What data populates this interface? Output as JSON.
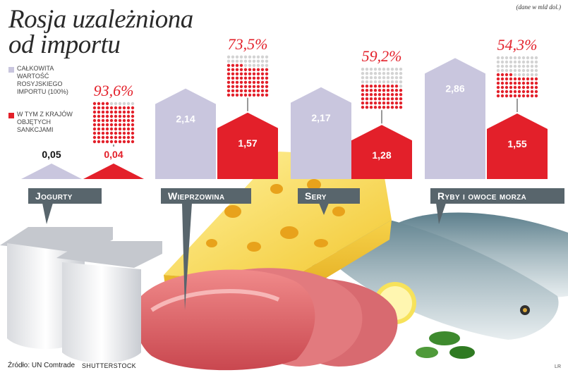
{
  "title_line1": "Rosja uzależniona",
  "title_line2": "od importu",
  "unit_note": "(dane w mld dol.)",
  "legend": {
    "total_label": "CAŁKOWITA WARTOŚĆ ROSYJSKIEGO IMPORTU (100%)",
    "sanctioned_label": "W TYM Z KRAJÓW OBJĘTYCH SANKCJAMI",
    "total_color": "#c9c6de",
    "sanctioned_color": "#e3202a"
  },
  "chart_data": {
    "type": "bar",
    "categories": [
      "Jogurty",
      "Wieprzowina",
      "Sery",
      "Ryby i owoce morza"
    ],
    "series": [
      {
        "name": "Całkowita wartość rosyjskiego importu (100%)",
        "values": [
          0.05,
          2.14,
          2.17,
          2.86
        ],
        "labels": [
          "0,05",
          "2,14",
          "2,17",
          "2,86"
        ]
      },
      {
        "name": "W tym z krajów objętych sankcjami",
        "values": [
          0.04,
          1.57,
          1.28,
          1.55
        ],
        "labels": [
          "0,04",
          "1,57",
          "1,28",
          "1,55"
        ]
      }
    ],
    "shares": [
      93.6,
      73.5,
      59.2,
      54.3
    ],
    "share_labels": [
      "93,6%",
      "73,5%",
      "59,2%",
      "54,3%"
    ]
  },
  "source": "Źródło: UN Comtrade",
  "credit": "SHUTTERSTOCK",
  "signature": "LR"
}
